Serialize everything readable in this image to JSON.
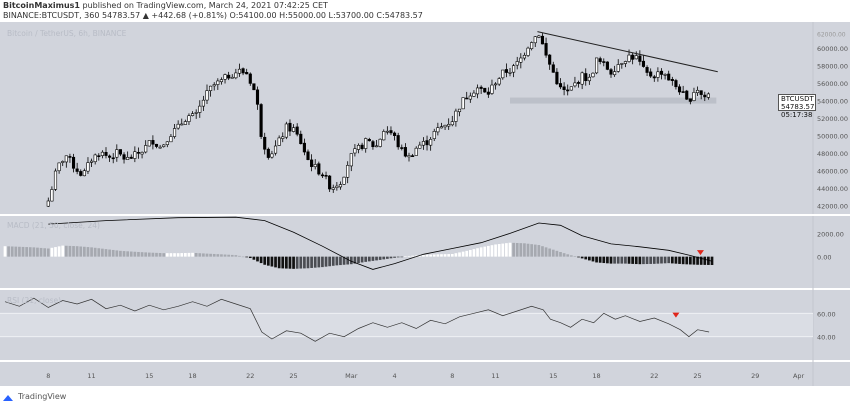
{
  "header": {
    "line1_user": "BitcoinMaximus1",
    "line1_rest": " published on TradingView.com, March 24, 2021 07:42:25 CET",
    "line2_symbol": "BINANCE:BTCUSDT, 360",
    "line2_ohlc": "54783.57 ▲ +442.68 (+0.81%) O:54100.00 H:55000.00 L:53700.00 C:54783.57"
  },
  "footer": {
    "brand": "TradingView"
  },
  "chart_data": {
    "type": "candlestick",
    "title": "Bitcoin / TetherUS, 6h, BINANCE",
    "last_price": {
      "symbol": "BTCUSDT",
      "value": "54783.57",
      "countdown": "05:17:38"
    },
    "x_ticks": [
      {
        "label": "8",
        "day": 8
      },
      {
        "label": "11",
        "day": 11
      },
      {
        "label": "15",
        "day": 15
      },
      {
        "label": "18",
        "day": 18
      },
      {
        "label": "22",
        "day": 22
      },
      {
        "label": "25",
        "day": 25
      },
      {
        "label": "Mar",
        "day": 29
      },
      {
        "label": "4",
        "day": 32
      },
      {
        "label": "8",
        "day": 36
      },
      {
        "label": "11",
        "day": 39
      },
      {
        "label": "15",
        "day": 43
      },
      {
        "label": "18",
        "day": 46
      },
      {
        "label": "22",
        "day": 50
      },
      {
        "label": "25",
        "day": 53
      },
      {
        "label": "29",
        "day": 57
      },
      {
        "label": "Apr",
        "day": 60
      }
    ],
    "x_range": [
      5.0,
      61.0
    ],
    "price_pane": {
      "ylim": [
        41000,
        63000
      ],
      "ticks": [
        "42000.00",
        "44000.00",
        "46000.00",
        "48000.00",
        "50000.00",
        "52000.00",
        "54000.00",
        "56000.00",
        "58000.00",
        "60000.00"
      ],
      "extra_tick": "62000.00",
      "path": [
        [
          8.0,
          42500
        ],
        [
          8.6,
          46200
        ],
        [
          9.2,
          47800
        ],
        [
          9.8,
          46400
        ],
        [
          10.4,
          45400
        ],
        [
          11.0,
          47300
        ],
        [
          11.6,
          48100
        ],
        [
          12.2,
          47500
        ],
        [
          12.8,
          48000
        ],
        [
          13.4,
          47200
        ],
        [
          14.0,
          47700
        ],
        [
          14.6,
          48400
        ],
        [
          15.2,
          49500
        ],
        [
          15.8,
          48600
        ],
        [
          16.4,
          50100
        ],
        [
          17.0,
          50900
        ],
        [
          17.6,
          52200
        ],
        [
          18.2,
          52100
        ],
        [
          18.8,
          54300
        ],
        [
          19.4,
          55700
        ],
        [
          20.0,
          56200
        ],
        [
          20.6,
          57000
        ],
        [
          21.2,
          57400
        ],
        [
          21.8,
          57100
        ],
        [
          22.4,
          54600
        ],
        [
          22.8,
          49600
        ],
        [
          23.3,
          47700
        ],
        [
          23.9,
          49000
        ],
        [
          24.5,
          50900
        ],
        [
          25.0,
          50700
        ],
        [
          25.5,
          49200
        ],
        [
          26.0,
          47200
        ],
        [
          26.5,
          46300
        ],
        [
          27.0,
          45600
        ],
        [
          27.6,
          44000
        ],
        [
          28.3,
          44800
        ],
        [
          28.9,
          47400
        ],
        [
          29.5,
          48500
        ],
        [
          30.1,
          49400
        ],
        [
          30.7,
          48600
        ],
        [
          31.3,
          50800
        ],
        [
          31.9,
          50100
        ],
        [
          32.4,
          48400
        ],
        [
          33.0,
          47500
        ],
        [
          33.6,
          48800
        ],
        [
          34.2,
          49200
        ],
        [
          34.8,
          50400
        ],
        [
          35.4,
          51100
        ],
        [
          36.0,
          51800
        ],
        [
          36.6,
          53700
        ],
        [
          37.2,
          54900
        ],
        [
          37.8,
          55500
        ],
        [
          38.4,
          54600
        ],
        [
          39.0,
          56200
        ],
        [
          39.6,
          57300
        ],
        [
          40.2,
          57600
        ],
        [
          40.8,
          58900
        ],
        [
          41.4,
          60800
        ],
        [
          42.0,
          61700
        ],
        [
          42.5,
          59100
        ],
        [
          43.0,
          57200
        ],
        [
          43.5,
          55300
        ],
        [
          44.0,
          54900
        ],
        [
          44.5,
          55900
        ],
        [
          45.0,
          56800
        ],
        [
          45.5,
          56400
        ],
        [
          46.0,
          58600
        ],
        [
          46.5,
          58100
        ],
        [
          47.0,
          57300
        ],
        [
          47.6,
          58400
        ],
        [
          48.2,
          59100
        ],
        [
          48.8,
          58900
        ],
        [
          49.4,
          57000
        ],
        [
          50.0,
          56900
        ],
        [
          50.6,
          57400
        ],
        [
          51.2,
          56100
        ],
        [
          51.8,
          55200
        ],
        [
          52.3,
          53700
        ],
        [
          52.9,
          55600
        ],
        [
          53.4,
          54300
        ],
        [
          53.8,
          54783
        ]
      ],
      "resistance_line": [
        [
          41.9,
          61900
        ],
        [
          54.4,
          57300
        ]
      ],
      "support_band": [
        [
          40.0,
          54000
        ],
        [
          54.3,
          54000
        ]
      ],
      "support_label": ""
    },
    "macd_pane": {
      "label": "MACD (21, 50, close, 24)",
      "ylim": [
        -2700,
        3500
      ],
      "ticks": [
        "2000.00",
        "0.00"
      ],
      "signal_line": [
        [
          8,
          2800
        ],
        [
          12,
          3100
        ],
        [
          17,
          3350
        ],
        [
          21,
          3400
        ],
        [
          23,
          3100
        ],
        [
          25,
          2100
        ],
        [
          27,
          900
        ],
        [
          29,
          -400
        ],
        [
          30.5,
          -1100
        ],
        [
          32,
          -600
        ],
        [
          34,
          200
        ],
        [
          36,
          700
        ],
        [
          38,
          1200
        ],
        [
          40,
          2000
        ],
        [
          42,
          2900
        ],
        [
          43.5,
          2700
        ],
        [
          45,
          1800
        ],
        [
          47,
          1100
        ],
        [
          49,
          850
        ],
        [
          51,
          550
        ],
        [
          52.5,
          100
        ],
        [
          54,
          -400
        ]
      ],
      "histogram": [
        [
          5,
          900
        ],
        [
          6,
          850
        ],
        [
          7,
          800
        ],
        [
          8,
          700
        ],
        [
          9,
          950
        ],
        [
          10,
          900
        ],
        [
          11,
          800
        ],
        [
          12,
          650
        ],
        [
          13,
          500
        ],
        [
          14,
          420
        ],
        [
          15,
          350
        ],
        [
          16,
          300
        ],
        [
          17,
          300
        ],
        [
          18,
          330
        ],
        [
          19,
          260
        ],
        [
          20,
          200
        ],
        [
          21,
          130
        ],
        [
          22,
          -120
        ],
        [
          23,
          -700
        ],
        [
          24,
          -1000
        ],
        [
          25,
          -1050
        ],
        [
          26,
          -1000
        ],
        [
          27,
          -900
        ],
        [
          28,
          -750
        ],
        [
          29,
          -650
        ],
        [
          30,
          -450
        ],
        [
          31,
          -280
        ],
        [
          32,
          -100
        ],
        [
          33,
          60
        ],
        [
          34,
          150
        ],
        [
          35,
          200
        ],
        [
          36,
          230
        ],
        [
          37,
          500
        ],
        [
          38,
          800
        ],
        [
          39,
          1050
        ],
        [
          40,
          1200
        ],
        [
          41,
          1150
        ],
        [
          42,
          1000
        ],
        [
          43,
          600
        ],
        [
          44,
          200
        ],
        [
          45,
          -150
        ],
        [
          46,
          -500
        ],
        [
          47,
          -600
        ],
        [
          48,
          -600
        ],
        [
          49,
          -650
        ],
        [
          50,
          -620
        ],
        [
          51,
          -560
        ],
        [
          52,
          -650
        ],
        [
          53,
          -700
        ],
        [
          54,
          -720
        ]
      ],
      "marker": [
        53.2,
        350
      ]
    },
    "rsi_pane": {
      "label": "RSI (21, close)",
      "ylim": [
        20,
        80
      ],
      "ticks": [
        "60.00",
        "40.00"
      ],
      "band": [
        40,
        60
      ],
      "line": [
        [
          5,
          70
        ],
        [
          6,
          66
        ],
        [
          7,
          73
        ],
        [
          8,
          65
        ],
        [
          9,
          71
        ],
        [
          10,
          68
        ],
        [
          11,
          72
        ],
        [
          12,
          64
        ],
        [
          13,
          67
        ],
        [
          14,
          62
        ],
        [
          15,
          67
        ],
        [
          16,
          63
        ],
        [
          17,
          66
        ],
        [
          18,
          70
        ],
        [
          19,
          66
        ],
        [
          20,
          72
        ],
        [
          21,
          68
        ],
        [
          22,
          64
        ],
        [
          22.8,
          44
        ],
        [
          23.5,
          38
        ],
        [
          24.5,
          45
        ],
        [
          25.5,
          43
        ],
        [
          26.5,
          36
        ],
        [
          27.5,
          43
        ],
        [
          28.5,
          40
        ],
        [
          29.5,
          47
        ],
        [
          30.5,
          52
        ],
        [
          31.5,
          48
        ],
        [
          32.5,
          52
        ],
        [
          33.5,
          47
        ],
        [
          34.5,
          54
        ],
        [
          35.5,
          51
        ],
        [
          36.5,
          57
        ],
        [
          37.5,
          60
        ],
        [
          38.5,
          63
        ],
        [
          39.5,
          58
        ],
        [
          40.5,
          62
        ],
        [
          41.5,
          66
        ],
        [
          42.3,
          63
        ],
        [
          42.8,
          55
        ],
        [
          43.5,
          52
        ],
        [
          44.2,
          48
        ],
        [
          45,
          55
        ],
        [
          45.8,
          52
        ],
        [
          46.5,
          60
        ],
        [
          47.3,
          55
        ],
        [
          48,
          58
        ],
        [
          49,
          53
        ],
        [
          50,
          56
        ],
        [
          51,
          51
        ],
        [
          51.8,
          46
        ],
        [
          52.4,
          40
        ],
        [
          53,
          46
        ],
        [
          53.8,
          44
        ]
      ],
      "marker": [
        51.5,
        58.5
      ]
    }
  },
  "colors": {
    "pane_bg": "#d1d4dc",
    "band": "#dadde4",
    "candle_up": "#ffffff",
    "candle_down": "#000000",
    "marker": "#e0261b",
    "axis_text": "#555555"
  }
}
